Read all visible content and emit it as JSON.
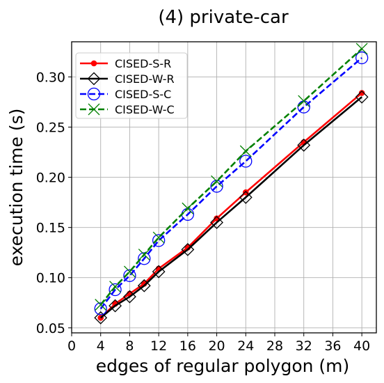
{
  "chart_data": {
    "type": "line",
    "title": "(4) private-car",
    "xlabel": "edges of regular polygon (m)",
    "ylabel": "execution time (s)",
    "xlim": [
      0,
      42
    ],
    "ylim": [
      0.045,
      0.335
    ],
    "xticks": [
      0,
      4,
      8,
      12,
      16,
      20,
      24,
      28,
      32,
      36,
      40
    ],
    "yticks": [
      0.05,
      0.1,
      0.15,
      0.2,
      0.25,
      0.3
    ],
    "ytick_labels": [
      "0.05",
      "0.10",
      "0.15",
      "0.20",
      "0.25",
      "0.30"
    ],
    "grid": true,
    "legend_position": "top-left",
    "x": [
      4,
      6,
      8,
      10,
      12,
      16,
      20,
      24,
      32,
      40
    ],
    "series": [
      {
        "name": "CISED-S-R",
        "color": "#ff0000",
        "dash": "solid",
        "marker": "dot",
        "values": [
          0.06,
          0.074,
          0.084,
          0.094,
          0.109,
          0.13,
          0.159,
          0.185,
          0.235,
          0.284
        ]
      },
      {
        "name": "CISED-W-R",
        "color": "#000000",
        "dash": "solid",
        "marker": "diamond",
        "values": [
          0.06,
          0.072,
          0.081,
          0.092,
          0.106,
          0.128,
          0.155,
          0.18,
          0.232,
          0.28
        ]
      },
      {
        "name": "CISED-S-C",
        "color": "#0000ff",
        "dash": "dashed",
        "marker": "circle",
        "values": [
          0.069,
          0.088,
          0.102,
          0.119,
          0.137,
          0.163,
          0.191,
          0.216,
          0.27,
          0.319
        ]
      },
      {
        "name": "CISED-W-C",
        "color": "#008000",
        "dash": "dashed",
        "marker": "x",
        "values": [
          0.073,
          0.091,
          0.106,
          0.123,
          0.14,
          0.169,
          0.196,
          0.226,
          0.276,
          0.328
        ]
      }
    ]
  }
}
